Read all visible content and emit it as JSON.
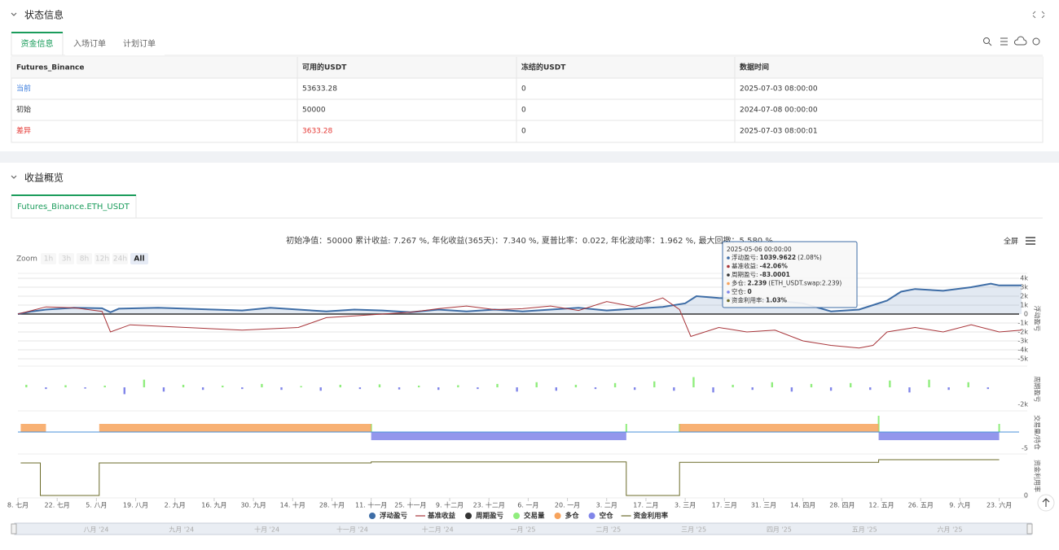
{
  "status": {
    "title": "状态信息",
    "tabs": [
      "资金信息",
      "入场订单",
      "计划订单"
    ],
    "table": {
      "header": [
        "Futures_Binance",
        "可用的USDT",
        "冻结的USDT",
        "数据时间"
      ],
      "rows": [
        [
          "当前",
          "53633.28",
          "0",
          "2025-07-03 08:00:00"
        ],
        [
          "初始",
          "50000",
          "0",
          "2024-07-08 00:00:00"
        ],
        [
          "差异",
          "3633.28",
          "0",
          "2025-07-03 08:00:01"
        ]
      ]
    }
  },
  "overview": {
    "title": "收益概览",
    "tab": "Futures_Binance.ETH_USDT",
    "summary": "初始净值：50000 累计收益: 7.267 %, 年化收益(365天)：7.340 %, 夏普比率：0.022, 年化波动率：1.962 %, 最大回撤：5.580 %",
    "fullscreen": "全屏",
    "zoom": {
      "label": "Zoom",
      "buttons": [
        "1h",
        "3h",
        "8h",
        "12h",
        "24h",
        "All"
      ]
    },
    "tooltip": {
      "date": "2025-05-06 00:00:00",
      "items": [
        {
          "label": "浮动盈亏:",
          "value": "1039.9622",
          "extra": "(2.08%)"
        },
        {
          "label": "基准收益:",
          "value": "-42.06%"
        },
        {
          "label": "周期盈亏:",
          "value": "-83.0001"
        },
        {
          "label": "多仓:",
          "value": "2.239",
          "extra": "(ETH_USDT.swap:2.239)"
        },
        {
          "label": "空仓:",
          "value": "0"
        },
        {
          "label": "资金利用率:",
          "value": "1.03%"
        }
      ]
    },
    "navigator": {
      "labels": [
        "八月 '24",
        "九月 '24",
        "十月 '24",
        "十一月 '24",
        "十二月 '24",
        "一月 '25",
        "二月 '25",
        "三月 '25",
        "四月 '25",
        "五月 '25",
        "六月 '25"
      ]
    }
  },
  "chart_data": {
    "type": "line",
    "xlim": [
      0,
      360
    ],
    "xticks": [
      {
        "value": 0,
        "label": "8. 七月"
      },
      {
        "value": 14,
        "label": "22. 七月"
      },
      {
        "value": 28,
        "label": "5. 八月"
      },
      {
        "value": 42,
        "label": "19. 八月"
      },
      {
        "value": 56,
        "label": "2. 九月"
      },
      {
        "value": 70,
        "label": "16. 九月"
      },
      {
        "value": 84,
        "label": "30. 九月"
      },
      {
        "value": 98,
        "label": "14. 十月"
      },
      {
        "value": 112,
        "label": "28. 十月"
      },
      {
        "value": 126,
        "label": "11. 十一月"
      },
      {
        "value": 140,
        "label": "25. 十一月"
      },
      {
        "value": 154,
        "label": "9. 十二月"
      },
      {
        "value": 168,
        "label": "23. 十二月"
      },
      {
        "value": 182,
        "label": "6. 一月"
      },
      {
        "value": 196,
        "label": "20. 一月"
      },
      {
        "value": 210,
        "label": "3. 二月"
      },
      {
        "value": 224,
        "label": "17. 二月"
      },
      {
        "value": 238,
        "label": "3. 三月"
      },
      {
        "value": 252,
        "label": "17. 三月"
      },
      {
        "value": 266,
        "label": "31. 三月"
      },
      {
        "value": 280,
        "label": "14. 四月"
      },
      {
        "value": 294,
        "label": "28. 四月"
      },
      {
        "value": 308,
        "label": "12. 五月"
      },
      {
        "value": 322,
        "label": "26. 五月"
      },
      {
        "value": 336,
        "label": "9. 六月"
      },
      {
        "value": 350,
        "label": "23. 六月"
      }
    ],
    "panes": [
      {
        "axis_title": "浮动盈亏",
        "ylim": [
          -5000,
          4000
        ],
        "grid": true,
        "yticks": [
          {
            "value": 4000,
            "label": "4k"
          },
          {
            "value": 3000,
            "label": "3k"
          },
          {
            "value": 2000,
            "label": "2k"
          },
          {
            "value": 1000,
            "label": "1k"
          },
          0,
          {
            "value": -1000,
            "label": "-1k"
          },
          {
            "value": -2000,
            "label": "-2k"
          },
          {
            "value": -3000,
            "label": "-3k"
          },
          {
            "value": -4000,
            "label": "-4k"
          },
          {
            "value": -5000,
            "label": "-5k"
          }
        ],
        "series": [
          {
            "name": "浮动盈亏",
            "kind": "area",
            "legend_shape": "circle",
            "color": "#3e6da6",
            "x": [
              0,
              5,
              10,
              20,
              30,
              33,
              36,
              50,
              60,
              70,
              80,
              90,
              100,
              110,
              120,
              130,
              140,
              150,
              160,
              170,
              180,
              190,
              200,
              210,
              220,
              230,
              238,
              242,
              250,
              260,
              270,
              280,
              290,
              300,
              305,
              310,
              315,
              320,
              330,
              340,
              347,
              350,
              358
            ],
            "values": [
              0,
              300,
              500,
              700,
              650,
              200,
              600,
              700,
              600,
              500,
              400,
              700,
              500,
              300,
              500,
              400,
              200,
              500,
              300,
              500,
              300,
              500,
              700,
              400,
              600,
              800,
              1200,
              2000,
              1800,
              1700,
              1500,
              1200,
              300,
              500,
              1000,
              1500,
              2500,
              2800,
              2600,
              3000,
              3400,
              3200,
              3200
            ]
          },
          {
            "name": "基准收益",
            "kind": "line",
            "legend_shape": "line",
            "color": "#a8353a",
            "x": [
              0,
              10,
              20,
              30,
              33,
              40,
              60,
              80,
              100,
              110,
              120,
              130,
              140,
              150,
              160,
              170,
              180,
              190,
              200,
              210,
              220,
              230,
              236,
              240,
              250,
              260,
              270,
              280,
              290,
              300,
              305,
              310,
              320,
              330,
              340,
              350,
              358
            ],
            "values": [
              0,
              800,
              700,
              300,
              -2000,
              -1200,
              -1500,
              -1800,
              -1500,
              -400,
              -200,
              0,
              200,
              600,
              900,
              500,
              600,
              900,
              400,
              1400,
              800,
              1800,
              500,
              -2500,
              -1500,
              -2000,
              -1800,
              -3000,
              -3500,
              -3800,
              -3500,
              -2000,
              -1500,
              -2000,
              -1200,
              -2000,
              -1800
            ]
          }
        ]
      },
      {
        "axis_title": "周期盈亏",
        "ylim": [
          -2000,
          2300
        ],
        "yticks": [
          {
            "value": -2000,
            "label": "-2k"
          }
        ],
        "series": [
          {
            "name": "周期盈亏",
            "kind": "bar",
            "legend_shape": "circle",
            "color": "#333333",
            "up_color": "#90ed7d",
            "down_color": "#8085e9",
            "x": [
              3,
              10,
              17,
              24,
              31,
              38,
              45,
              52,
              59,
              66,
              73,
              80,
              87,
              94,
              101,
              108,
              115,
              122,
              129,
              136,
              143,
              150,
              157,
              164,
              171,
              178,
              185,
              192,
              199,
              206,
              213,
              220,
              227,
              234,
              241,
              248,
              255,
              262,
              269,
              276,
              283,
              290,
              297,
              304,
              311,
              318,
              325,
              332,
              339,
              346
            ],
            "values": [
              300,
              -200,
              250,
              -150,
              200,
              -800,
              900,
              -500,
              300,
              -300,
              200,
              -200,
              400,
              -300,
              150,
              -400,
              300,
              -200,
              350,
              -250,
              200,
              -300,
              250,
              -200,
              400,
              -500,
              600,
              -400,
              300,
              -200,
              500,
              -300,
              700,
              -400,
              1200,
              -600,
              300,
              -300,
              600,
              -500,
              400,
              -400,
              500,
              -300,
              800,
              -600,
              900,
              -300,
              600,
              -200
            ]
          }
        ]
      },
      {
        "axis_title": "交易量/持仓",
        "ylim": [
          -5,
          5
        ],
        "yticks": [
          -5
        ],
        "series": [
          {
            "name": "交易量",
            "kind": "spike",
            "legend_shape": "circle",
            "color": "#90ed7d",
            "x": [
              126,
              217,
              236,
              307,
              350
            ],
            "values": [
              2.5,
              2.5,
              2.5,
              5,
              2.5
            ]
          },
          {
            "name": "多仓",
            "kind": "block",
            "legend_shape": "circle",
            "color": "#f7a35c",
            "x": [
              1,
              29,
              236
            ],
            "x_end": [
              10,
              126,
              307
            ],
            "values": [
              2.5,
              2.5,
              2.5
            ]
          },
          {
            "name": "空仓",
            "kind": "block",
            "legend_shape": "circle",
            "color": "#8085e9",
            "x": [
              126,
              307
            ],
            "x_end": [
              217,
              350
            ],
            "values": [
              -2.5,
              -2.5
            ]
          }
        ]
      },
      {
        "axis_title": "资金利用率",
        "ylim": [
          0,
          1.2
        ],
        "yticks": [
          0
        ],
        "series": [
          {
            "name": "资金利用率",
            "kind": "step",
            "legend_shape": "line",
            "color": "#6b6b2a",
            "x": [
              1,
              8,
              29,
              126,
              217,
              236,
              307,
              350
            ],
            "values": [
              1.0,
              0,
              1.0,
              1.03,
              0,
              1.02,
              1.1,
              1.1
            ]
          }
        ]
      }
    ]
  }
}
